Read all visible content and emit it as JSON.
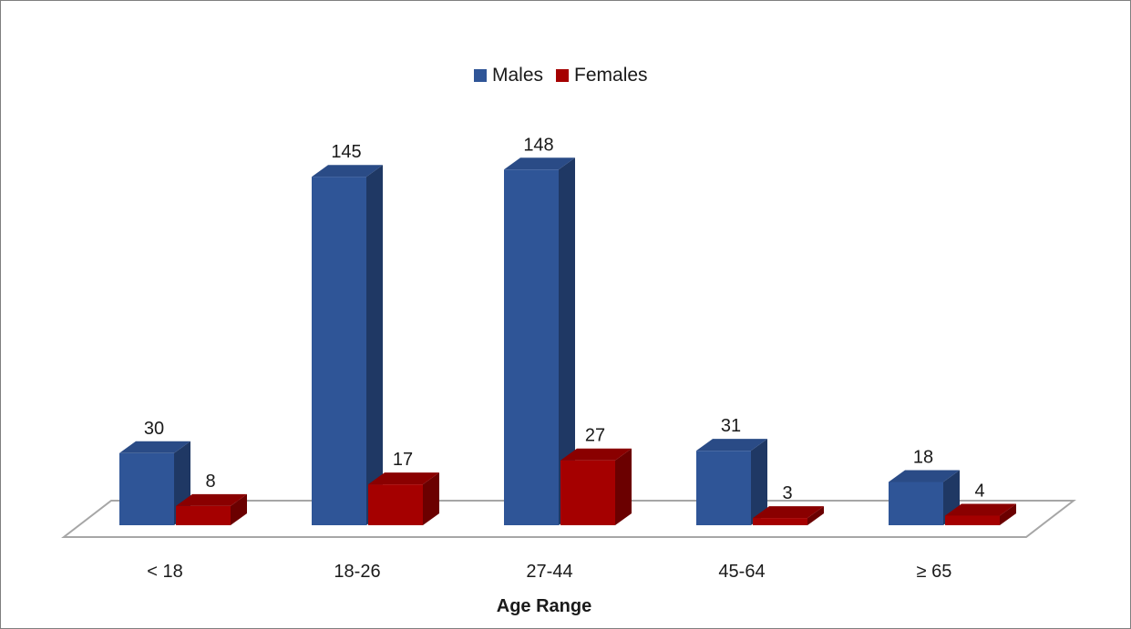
{
  "chart_data": {
    "type": "bar",
    "style": "3d-clustered-column",
    "title": "",
    "xlabel": "Age Range",
    "ylabel": "",
    "categories": [
      "< 18",
      "18-26",
      "27-44",
      "45-64",
      "≥ 65"
    ],
    "series": [
      {
        "name": "Males",
        "values": [
          30,
          145,
          148,
          31,
          18
        ],
        "color": "#2f5597",
        "side_color": "#1f3864",
        "top_color": "#2a4b86"
      },
      {
        "name": "Females",
        "values": [
          8,
          17,
          27,
          3,
          4
        ],
        "color": "#a50000",
        "side_color": "#6b0000",
        "top_color": "#8a0000"
      }
    ],
    "ylim": [
      0,
      150
    ],
    "grid": false,
    "legend_position": "top-center",
    "data_labels": true
  }
}
